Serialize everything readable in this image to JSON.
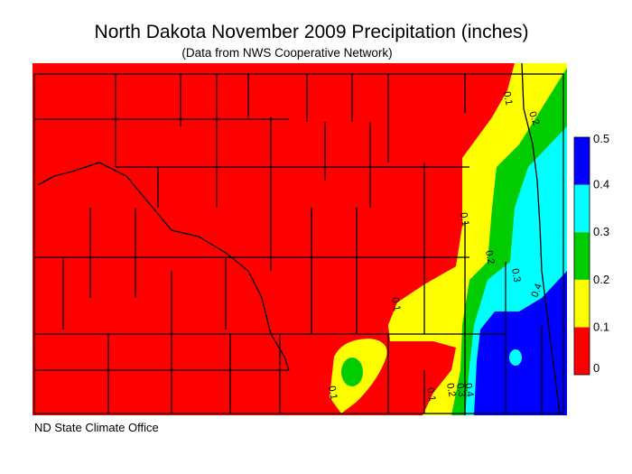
{
  "header": {
    "title": "North Dakota November 2009 Precipitation (inches)",
    "subtitle": "(Data from NWS Cooperative Network)"
  },
  "legend": {
    "ticks": [
      "0",
      "0.1",
      "0.2",
      "0.3",
      "0.4",
      "0.5"
    ],
    "colors": [
      "#ff0000",
      "#ffff00",
      "#00cc00",
      "#00ffff",
      "#0000ff"
    ]
  },
  "contour_labels": [
    "0.1",
    "0.2",
    "0.1",
    "0.2",
    "0.3",
    "0.4",
    "0.1",
    "0.1",
    "0.1",
    "0.2",
    "0.3",
    "0.4"
  ],
  "footer": "ND State Climate Office"
}
